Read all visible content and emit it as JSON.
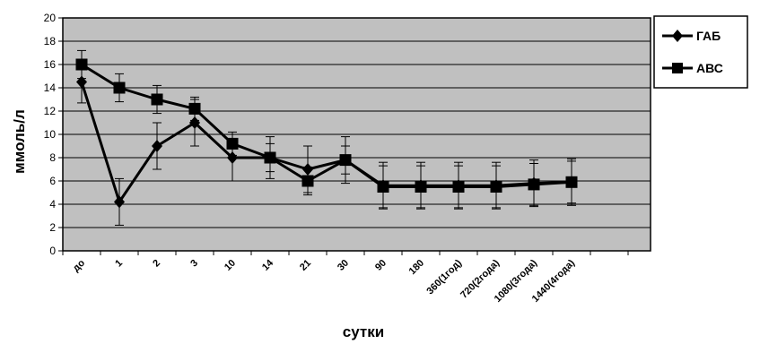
{
  "chart_data": {
    "type": "line",
    "xlabel": "сутки",
    "ylabel": "ммоль/л",
    "ylim": [
      0,
      20
    ],
    "y_ticks": [
      "0",
      "2",
      "4",
      "6",
      "8",
      "10",
      "12",
      "14",
      "16",
      "18",
      "20"
    ],
    "categories": [
      "до",
      "1",
      "2",
      "3",
      "10",
      "14",
      "21",
      "30",
      "90",
      "180",
      "360(1год)",
      "720(2года)",
      "1080(3года)",
      "1440(4года)"
    ],
    "grid": "horizontal",
    "legend_position": "right",
    "colors": {
      "plot_area": "#c0c0c0",
      "line": "#000000",
      "grid": "#000000"
    },
    "series": [
      {
        "name": "ГАБ",
        "marker": "diamond",
        "values": [
          14.5,
          4.2,
          9.0,
          11.0,
          8.0,
          8.0,
          7.0,
          7.8,
          5.6,
          5.6,
          5.6,
          5.6,
          5.8,
          5.9
        ],
        "errors": [
          1.8,
          2.0,
          2.0,
          2.0,
          2.0,
          1.8,
          2.0,
          2.0,
          2.0,
          2.0,
          2.0,
          2.0,
          2.0,
          2.0
        ]
      },
      {
        "name": "АВС",
        "marker": "square",
        "values": [
          16.0,
          14.0,
          13.0,
          12.2,
          9.2,
          8.0,
          6.0,
          7.8,
          5.5,
          5.5,
          5.5,
          5.5,
          5.7,
          5.9
        ],
        "errors": [
          1.2,
          1.2,
          1.2,
          1.0,
          1.0,
          1.2,
          1.2,
          1.2,
          1.8,
          1.8,
          1.8,
          1.8,
          1.8,
          1.8
        ]
      }
    ]
  }
}
